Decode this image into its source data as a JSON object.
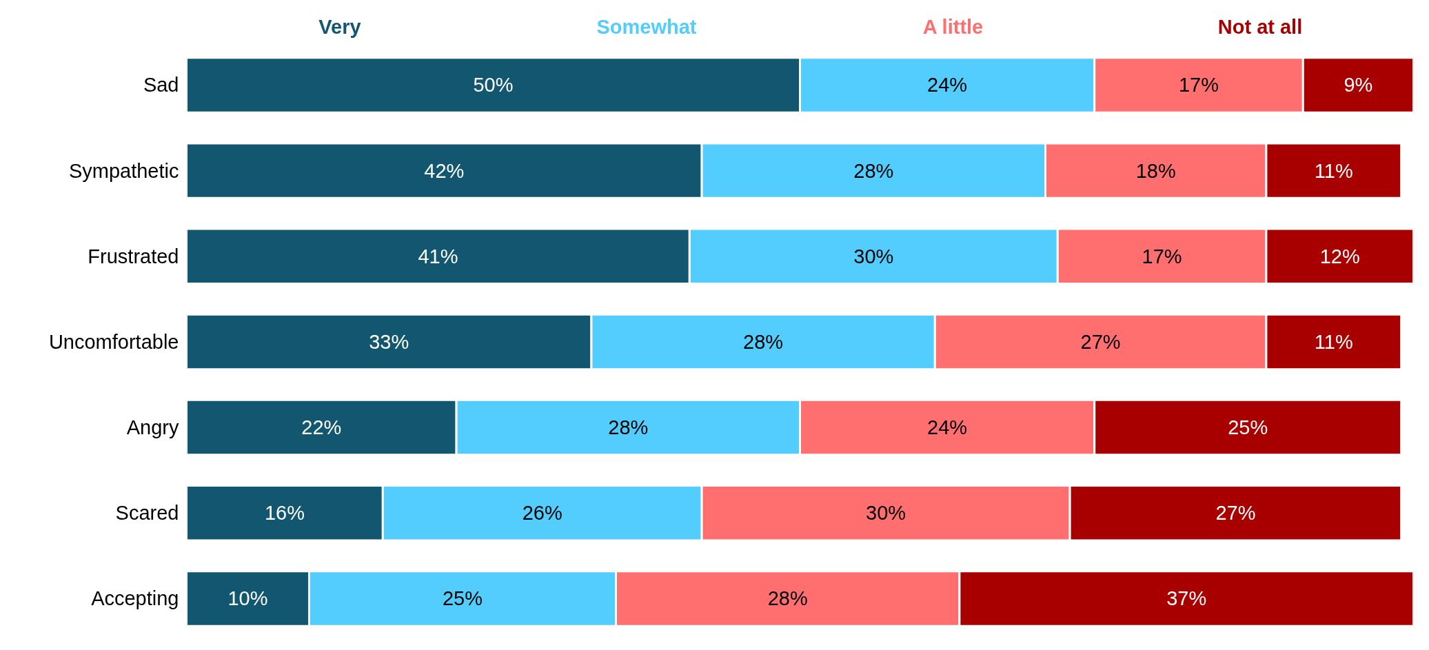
{
  "chart_data": {
    "type": "bar",
    "orientation": "horizontal",
    "stacked": true,
    "categories": [
      "Sad",
      "Sympathetic",
      "Frustrated",
      "Uncomfortable",
      "Angry",
      "Scared",
      "Accepting"
    ],
    "series": [
      {
        "name": "Very",
        "color": "#12566f",
        "values": [
          50,
          42,
          41,
          33,
          22,
          16,
          10
        ],
        "value_labels": [
          "50%",
          "42%",
          "41%",
          "33%",
          "22%",
          "16%",
          "10%"
        ]
      },
      {
        "name": "Somewhat",
        "color": "#52cdfd",
        "values": [
          24,
          28,
          30,
          28,
          28,
          26,
          25
        ],
        "value_labels": [
          "24%",
          "28%",
          "30%",
          "28%",
          "28%",
          "26%",
          "25%"
        ]
      },
      {
        "name": "A little",
        "color": "#ff6f6f",
        "values": [
          17,
          18,
          17,
          27,
          24,
          30,
          28
        ],
        "value_labels": [
          "17%",
          "18%",
          "17%",
          "27%",
          "24%",
          "30%",
          "28%"
        ]
      },
      {
        "name": "Not at all",
        "color": "#a80000",
        "values": [
          9,
          11,
          12,
          11,
          25,
          27,
          37
        ],
        "value_labels": [
          "9%",
          "11%",
          "12%",
          "11%",
          "25%",
          "27%",
          "37%"
        ]
      }
    ],
    "xlim": [
      0,
      100
    ],
    "tick_labels": "y",
    "grid": false
  }
}
